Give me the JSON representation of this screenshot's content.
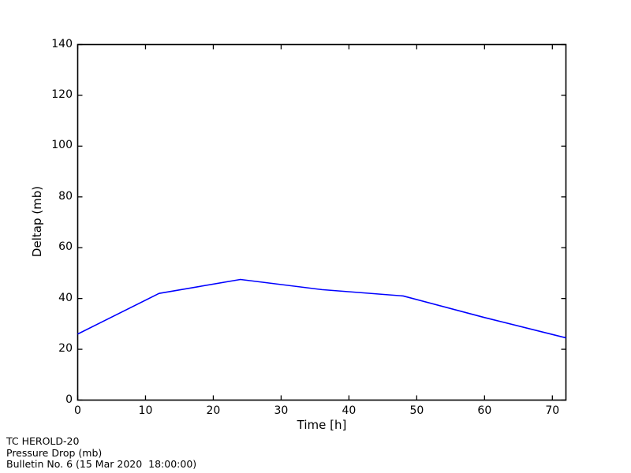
{
  "chart_data": {
    "type": "line",
    "title": "",
    "xlabel": "Time [h]",
    "ylabel": "Deltap (mb)",
    "xlim": [
      0,
      72
    ],
    "ylim": [
      0,
      140
    ],
    "xticks": [
      0,
      10,
      20,
      30,
      40,
      50,
      60,
      70
    ],
    "yticks": [
      0,
      20,
      40,
      60,
      80,
      100,
      120,
      140
    ],
    "grid": false,
    "legend": null,
    "series": [
      {
        "name": "Pressure Drop (mb)",
        "color": "#0000ff",
        "x": [
          0,
          12,
          24,
          36,
          48,
          60,
          72
        ],
        "y": [
          26,
          42,
          47.5,
          43.5,
          41,
          32.5,
          24.5
        ]
      }
    ]
  },
  "footer": {
    "line1": "TC HEROLD-20",
    "line2": "Pressure Drop (mb)",
    "line3": "Bulletin No. 6 (15 Mar 2020  18:00:00)"
  },
  "colors": {
    "background": "#ffffff",
    "axis": "#000000",
    "line": "#0000ff",
    "text": "#000000"
  }
}
